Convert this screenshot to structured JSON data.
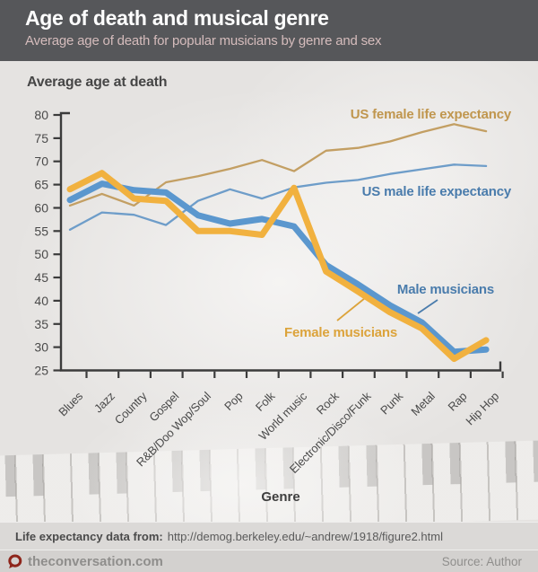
{
  "header": {
    "title": "Age of death and musical genre",
    "subtitle": "Average age of death for popular musicians by genre and sex"
  },
  "chart_data": {
    "type": "line",
    "title": "Age of death and musical genre",
    "subtitle": "Average age of death for popular musicians by genre and sex",
    "xlabel": "Genre",
    "ylabel": "Average age at death",
    "ylim": [
      25,
      80
    ],
    "yticks": [
      25,
      30,
      35,
      40,
      45,
      50,
      55,
      60,
      65,
      70,
      75,
      80
    ],
    "grid": false,
    "legend_position": "inline-annotations",
    "categories": [
      "Blues",
      "Jazz",
      "Country",
      "Gospel",
      "R&B/Doo Wop/Soul",
      "Pop",
      "Folk",
      "World music",
      "Rock",
      "Electronic/Disco/Funk",
      "Punk",
      "Metal",
      "Rap",
      "Hip Hop"
    ],
    "series": [
      {
        "name": "US male life expectancy",
        "color": "#6E9DC9",
        "label_color": "#4A7CAC",
        "style": "thin",
        "values": [
          55.3,
          59,
          58.5,
          56.3,
          61.5,
          64,
          62,
          64.4,
          65.4,
          66,
          67.3,
          68.3,
          69.3,
          69
        ]
      },
      {
        "name": "US female life expectancy",
        "color": "#C39F63",
        "label_color": "#C0964E",
        "style": "thin",
        "values": [
          60.5,
          63,
          60.5,
          65.5,
          66.8,
          68.4,
          70.3,
          67.9,
          72.3,
          72.9,
          74.3,
          76.3,
          78,
          76.5
        ]
      },
      {
        "name": "Male musicians",
        "color": "#5B97CE",
        "label_color": "#4A7CAC",
        "style": "thick",
        "values": [
          61.7,
          65.2,
          63.8,
          63.3,
          58.4,
          56.6,
          57.6,
          56,
          47.7,
          43.5,
          39,
          35.3,
          29,
          29.5
        ]
      },
      {
        "name": "Female musicians",
        "color": "#F1B13F",
        "label_color": "#DCA33B",
        "style": "thick",
        "values": [
          64,
          67.5,
          62,
          61.5,
          55,
          55,
          54.2,
          64.3,
          46.3,
          42,
          37.5,
          34,
          27.5,
          31.5
        ]
      }
    ]
  },
  "footer": {
    "note_label": "Life expectancy data from:",
    "note_url": "http://demog.berkeley.edu/~andrew/1918/figure2.html",
    "brand": "theconversation.com",
    "source": "Source: Author"
  },
  "colors": {
    "header_bg": "#56575A",
    "subtitle_text": "#D5BCBC",
    "chart_bg": "#E5E3E1",
    "axis": "#3B3B3B",
    "logo_red": "#8E251B"
  }
}
